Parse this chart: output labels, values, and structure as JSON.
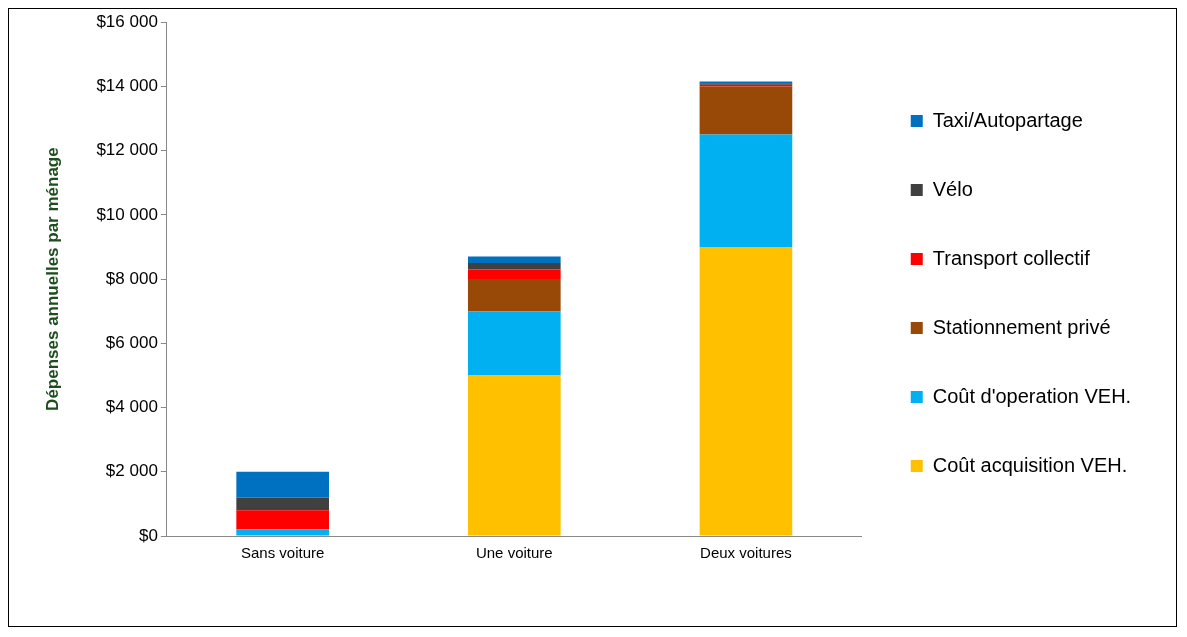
{
  "chart_data": {
    "type": "bar",
    "stacked": true,
    "ylabel": "Dépenses annuelles par ménage",
    "categories": [
      "Sans voiture",
      "Une voiture",
      "Deux voitures"
    ],
    "series": [
      {
        "name": "Coût acquisition VEH.",
        "color": "#ffc000",
        "values": [
          0,
          5000,
          9000
        ]
      },
      {
        "name": "Coût d'operation VEH.",
        "color": "#00b0f0",
        "values": [
          200,
          2000,
          3500
        ]
      },
      {
        "name": "Stationnement privé",
        "color": "#984807",
        "values": [
          0,
          1000,
          1500
        ]
      },
      {
        "name": "Transport collectif",
        "color": "#ff0000",
        "values": [
          600,
          300,
          50
        ]
      },
      {
        "name": "Vélo",
        "color": "#404040",
        "values": [
          400,
          200,
          50
        ]
      },
      {
        "name": "Taxi/Autopartage",
        "color": "#0070c0",
        "values": [
          800,
          200,
          50
        ]
      }
    ],
    "ylim": [
      0,
      16000
    ],
    "yticks": [
      {
        "value": 0,
        "label": "$0"
      },
      {
        "value": 2000,
        "label": "$2 000"
      },
      {
        "value": 4000,
        "label": "$4 000"
      },
      {
        "value": 6000,
        "label": "$6 000"
      },
      {
        "value": 8000,
        "label": "$8 000"
      },
      {
        "value": 10000,
        "label": "$10 000"
      },
      {
        "value": 12000,
        "label": "$12 000"
      },
      {
        "value": 14000,
        "label": "$14 000"
      },
      {
        "value": 16000,
        "label": "$16 000"
      }
    ],
    "grid": false,
    "legend": "right"
  }
}
